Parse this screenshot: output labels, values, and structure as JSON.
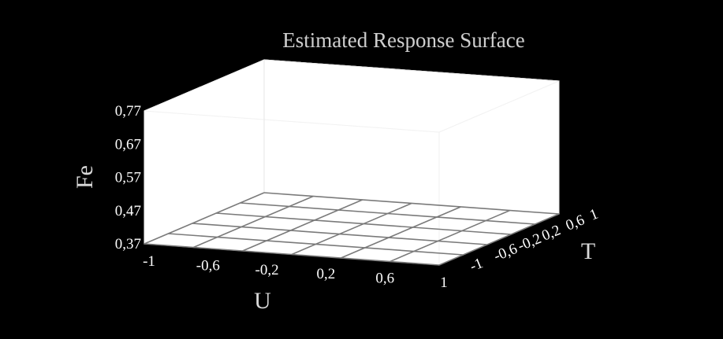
{
  "chart_data": {
    "type": "surface3d",
    "title": "Estimated Response Surface",
    "xlabel": "U",
    "ylabel": "T",
    "zlabel": "Fe",
    "x_ticks": [
      "-1",
      "-0,6",
      "-0,2",
      "0,2",
      "0,6",
      "1"
    ],
    "y_ticks": [
      "-1",
      "-0,6",
      "-0,2",
      "0,2",
      "0,6",
      "1"
    ],
    "z_ticks": [
      "0,37",
      "0,47",
      "0,57",
      "0,67",
      "0,77"
    ],
    "xlim": [
      -1,
      1
    ],
    "ylim": [
      -1,
      1
    ],
    "zlim": [
      0.37,
      0.77
    ],
    "grid": true
  }
}
